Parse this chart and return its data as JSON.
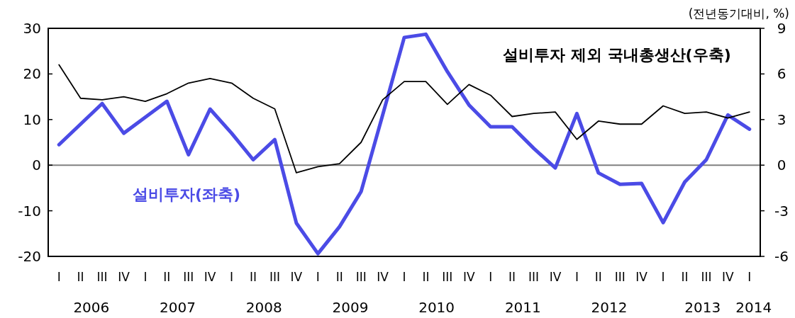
{
  "chart_data": {
    "type": "line",
    "subtitle": "(전년동기대비, %)",
    "categories": [
      "I",
      "II",
      "III",
      "IV",
      "I",
      "II",
      "III",
      "IV",
      "I",
      "II",
      "III",
      "IV",
      "I",
      "II",
      "III",
      "IV",
      "I",
      "II",
      "III",
      "IV",
      "I",
      "II",
      "III",
      "IV",
      "I",
      "II",
      "III",
      "IV",
      "I",
      "II",
      "III",
      "IV",
      "I"
    ],
    "series": [
      {
        "name": "설비투자(좌축)",
        "color": "#4b4be6",
        "axis": "y",
        "values": [
          4.5,
          9,
          13.5,
          7,
          10.5,
          14,
          2.3,
          12.3,
          7,
          1.2,
          5.6,
          -12.7,
          -19.4,
          -13.5,
          -5.8,
          11,
          28,
          28.7,
          20.5,
          13.2,
          8.4,
          8.4,
          3.7,
          -0.6,
          11.3,
          -1.7,
          -4.2,
          -4,
          -12.6,
          -3.7,
          1.2,
          11,
          7.9
        ]
      },
      {
        "name": "설비투자 제외 국내총생산(우축)",
        "color": "#000000",
        "axis": "y2",
        "values": [
          6.6,
          4.4,
          4.3,
          4.5,
          4.2,
          4.7,
          5.4,
          5.7,
          5.4,
          4.4,
          3.7,
          -0.5,
          -0.1,
          0.1,
          1.5,
          4.3,
          5.5,
          5.5,
          4,
          5.3,
          4.6,
          3.2,
          3.4,
          3.5,
          1.7,
          2.9,
          2.7,
          2.7,
          3.9,
          3.4,
          3.5,
          3.1,
          3.5
        ]
      }
    ],
    "ylim": [
      -20,
      30
    ],
    "yticks": [
      -20,
      -10,
      0,
      10,
      20,
      30
    ],
    "y2lim": [
      -6,
      9
    ],
    "y2ticks": [
      -6,
      -3,
      0,
      3,
      6,
      9
    ],
    "ref_lines": [
      {
        "axis": "y",
        "value": 0,
        "color": "#808080"
      }
    ],
    "annotations": [
      "2006",
      "2007",
      "2008",
      "2009",
      "2010",
      "2011",
      "2012",
      "2013",
      "2014"
    ]
  }
}
